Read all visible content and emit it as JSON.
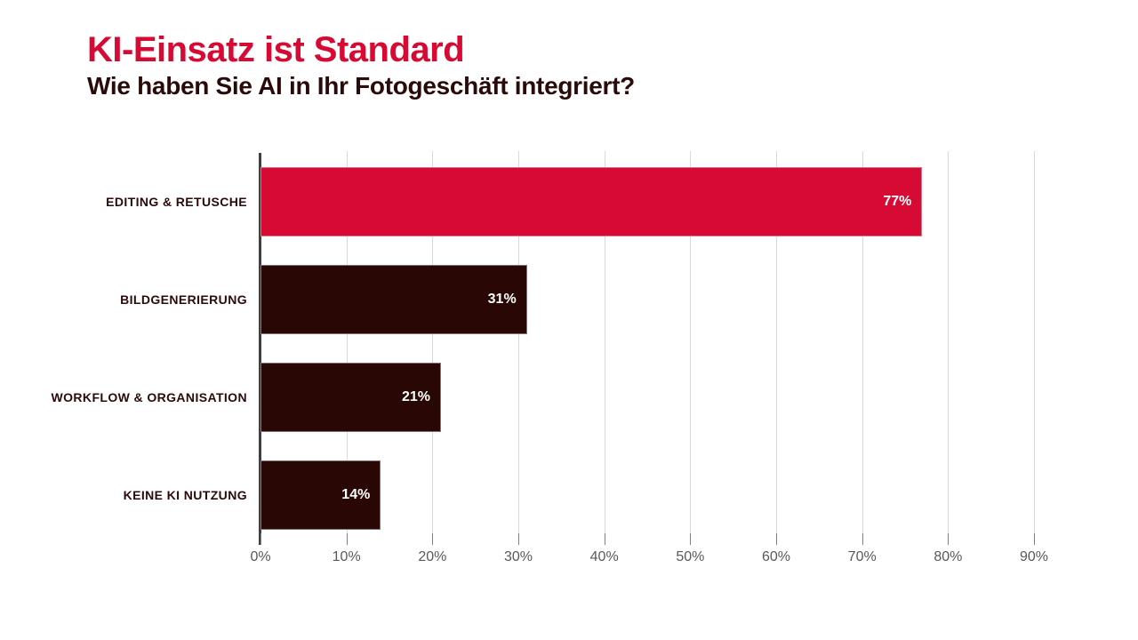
{
  "header": {
    "title": "KI-Einsatz ist Standard",
    "subtitle": "Wie haben Sie AI in Ihr Fotogeschäft integriert?"
  },
  "chart_data": {
    "type": "bar",
    "orientation": "horizontal",
    "title": "KI-Einsatz ist Standard",
    "subtitle": "Wie haben Sie AI in Ihr Fotogeschäft integriert?",
    "categories": [
      "EDITING & RETUSCHE",
      "BILDGENERIERUNG",
      "WORKFLOW & ORGANISATION",
      "KEINE KI NUTZUNG"
    ],
    "values": [
      77,
      31,
      21,
      14
    ],
    "value_labels": [
      "77%",
      "31%",
      "21%",
      "14%"
    ],
    "x_tick_values": [
      0,
      10,
      20,
      30,
      40,
      50,
      60,
      70,
      80,
      90
    ],
    "x_tick_labels": [
      "0%",
      "10%",
      "20%",
      "30%",
      "40%",
      "50%",
      "60%",
      "70%",
      "80%",
      "90%"
    ],
    "xlim": [
      0,
      100
    ],
    "grid": true,
    "legend": false,
    "bar_colors": [
      "#D60A33",
      "#290705",
      "#290705",
      "#290705"
    ]
  },
  "colors": {
    "accent_red": "#D60A33",
    "bar_dark": "#290705",
    "label_dark": "#2B0A0A",
    "tick_gray": "#595959",
    "gridline_gray": "#D9D9D9",
    "axis_dark": "#404040",
    "background": "#FFFFFF"
  }
}
